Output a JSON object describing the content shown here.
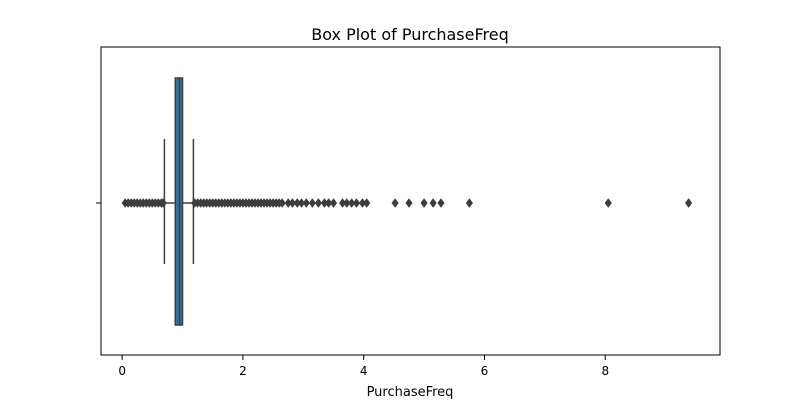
{
  "chart_data": {
    "type": "box",
    "title": "Box Plot of PurchaseFreq",
    "xlabel": "PurchaseFreq",
    "ylabel": "",
    "orientation": "horizontal",
    "xlim": [
      -0.35,
      9.9
    ],
    "xticks": [
      0,
      2,
      4,
      6,
      8
    ],
    "grid": false,
    "box": {
      "whisker_low": 0.7,
      "q1": 0.88,
      "median": 0.95,
      "q3": 1.0,
      "whisker_high": 1.18,
      "color": "#3274a1"
    },
    "outliers": [
      0.05,
      0.1,
      0.15,
      0.2,
      0.25,
      0.3,
      0.35,
      0.4,
      0.45,
      0.5,
      0.55,
      0.6,
      0.65,
      0.68,
      1.2,
      1.25,
      1.3,
      1.35,
      1.4,
      1.45,
      1.5,
      1.55,
      1.6,
      1.65,
      1.7,
      1.75,
      1.8,
      1.85,
      1.9,
      1.95,
      2.0,
      2.05,
      2.1,
      2.15,
      2.2,
      2.25,
      2.3,
      2.35,
      2.4,
      2.45,
      2.5,
      2.55,
      2.6,
      2.65,
      2.75,
      2.82,
      2.9,
      2.97,
      3.05,
      3.15,
      3.25,
      3.35,
      3.42,
      3.5,
      3.65,
      3.72,
      3.8,
      3.88,
      3.98,
      4.05,
      4.52,
      4.75,
      5.0,
      5.15,
      5.28,
      5.75,
      8.05,
      9.38
    ],
    "outlier_color": "#3d3d3d"
  }
}
